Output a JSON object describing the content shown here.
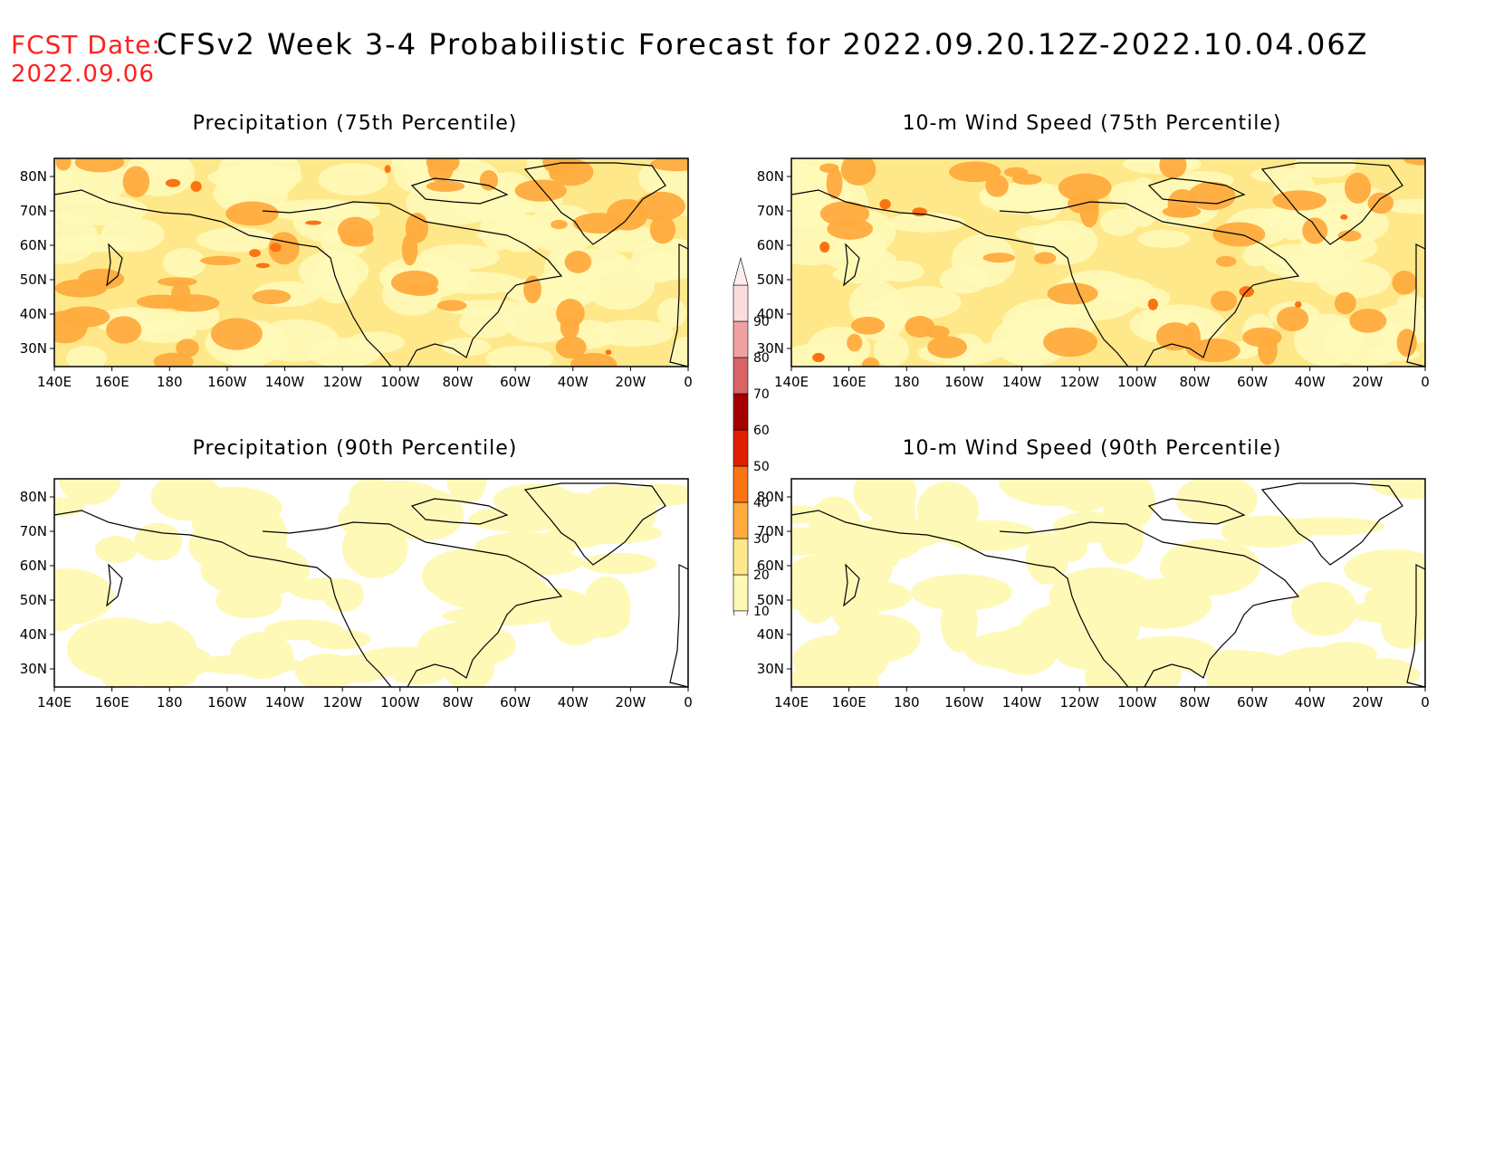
{
  "header": {
    "fcst_label": "FCST Date:",
    "fcst_date": "2022.09.06",
    "title": "CFSv2 Week 3-4 Probabilistic Forecast for 2022.09.20.12Z-2022.10.04.06Z"
  },
  "panels": [
    {
      "title": "Precipitation (75th Percentile)",
      "intensity": "high"
    },
    {
      "title": "10-m Wind Speed (75th Percentile)",
      "intensity": "high"
    },
    {
      "title": "Precipitation (90th Percentile)",
      "intensity": "low"
    },
    {
      "title": "10-m Wind Speed (90th Percentile)",
      "intensity": "low"
    }
  ],
  "axes": {
    "lon_labels": [
      "140E",
      "160E",
      "180",
      "160W",
      "140W",
      "120W",
      "100W",
      "80W",
      "60W",
      "40W",
      "20W",
      "0"
    ],
    "lat_labels": [
      "80N",
      "70N",
      "60N",
      "50N",
      "40N",
      "30N"
    ]
  },
  "colorbar": {
    "levels": [
      "10",
      "20",
      "30",
      "40",
      "50",
      "60",
      "70",
      "80",
      "90"
    ],
    "colors": [
      "#fff9b8",
      "#ffe88a",
      "#ffab3e",
      "#fc7313",
      "#e11e00",
      "#a50000",
      "#d86466",
      "#f1a0a4",
      "#fbdddd"
    ]
  }
}
